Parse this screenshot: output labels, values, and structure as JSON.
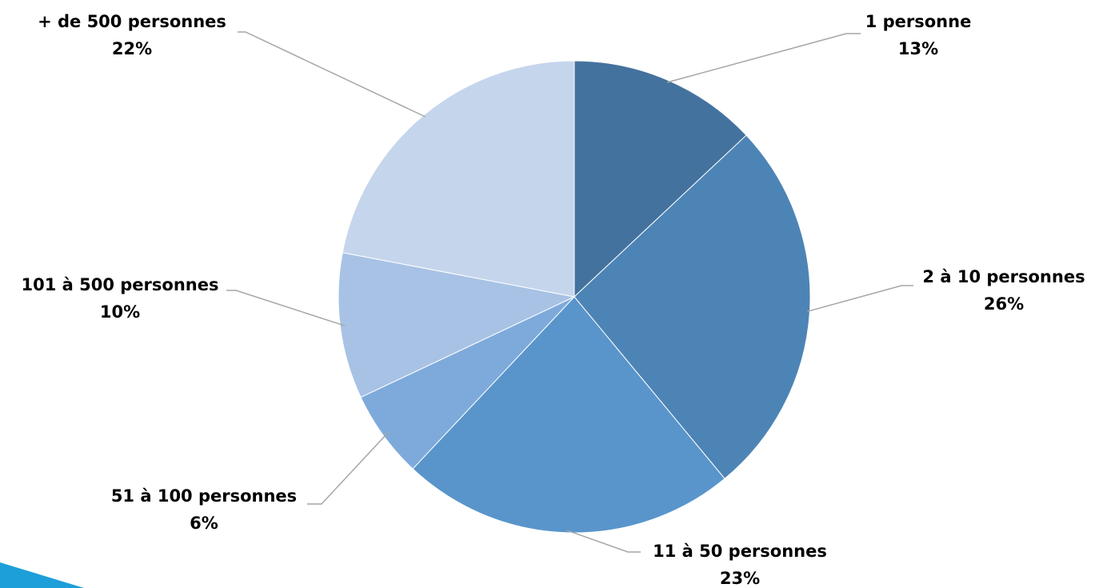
{
  "chart_data": {
    "type": "pie",
    "title": "",
    "start_angle_deg": 0,
    "direction": "clockwise",
    "slices": [
      {
        "label": "1 personne",
        "value": 13,
        "value_label": "13%",
        "color": "#44729e"
      },
      {
        "label": "2 à 10 personnes",
        "value": 26,
        "value_label": "26%",
        "color": "#4d84b6"
      },
      {
        "label": "11 à 50 personnes",
        "value": 23,
        "value_label": "23%",
        "color": "#5995cb"
      },
      {
        "label": "51 à 100 personnes",
        "value": 6,
        "value_label": "6%",
        "color": "#7eaadb"
      },
      {
        "label": "101 à 500 personnes",
        "value": 10,
        "value_label": "10%",
        "color": "#a7c2e5"
      },
      {
        "label": "+ de 500 personnes",
        "value": 22,
        "value_label": "22%",
        "color": "#c5d5ec"
      }
    ]
  },
  "decoration": {
    "accent_color": "#1d9fd9"
  }
}
